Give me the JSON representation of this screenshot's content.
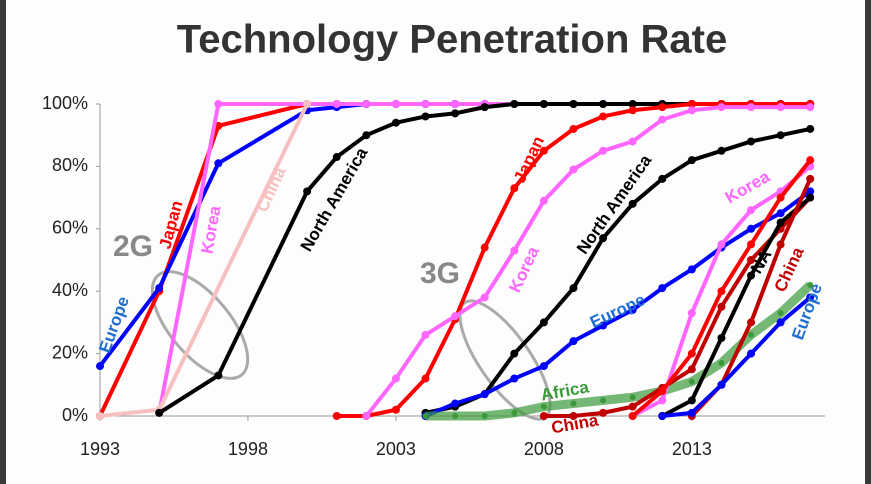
{
  "chart_data": {
    "type": "line",
    "title": "Technology Penetration Rate",
    "annotations": [
      "2G",
      "3G"
    ],
    "xlim": [
      1993,
      2017.5
    ],
    "xticks": [
      1993,
      1998,
      2003,
      2008,
      2013
    ],
    "ylim": [
      0,
      100
    ],
    "yticks": [
      {
        "value": 0,
        "label": "0%"
      },
      {
        "value": 20,
        "label": "20%"
      },
      {
        "value": 40,
        "label": "40%"
      },
      {
        "value": 60,
        "label": "60%"
      },
      {
        "value": 80,
        "label": "80%"
      },
      {
        "value": 100,
        "label": "100%"
      }
    ],
    "grid": false,
    "series": [
      {
        "name": "Japan",
        "color": "#ff0000",
        "x": [
          1993,
          1995,
          1997,
          2000,
          2001,
          2002
        ],
        "values": [
          0,
          40,
          93,
          100,
          100,
          100
        ]
      },
      {
        "name": "Europe",
        "color": "#0000ff",
        "x": [
          1993,
          1995,
          1997,
          2000,
          2001,
          2002,
          2003,
          2004,
          2005,
          2006,
          2007,
          2008,
          2009,
          2010,
          2011,
          2012,
          2013,
          2014,
          2015,
          2016,
          2017
        ],
        "values": [
          16,
          41,
          81,
          98,
          99,
          100,
          100,
          100,
          100,
          100,
          100,
          100,
          100,
          100,
          100,
          100,
          100,
          100,
          100,
          100,
          100
        ]
      },
      {
        "name": "Korea",
        "color": "#ff66ff",
        "x": [
          1995,
          1997,
          2000,
          2001,
          2002,
          2003,
          2004,
          2005,
          2006,
          2007,
          2008,
          2009,
          2010,
          2011,
          2012,
          2013,
          2014,
          2015,
          2016,
          2017
        ],
        "values": [
          1,
          100,
          100,
          100,
          100,
          100,
          100,
          100,
          100,
          100,
          100,
          100,
          100,
          100,
          100,
          100,
          100,
          100,
          100,
          100
        ]
      },
      {
        "name": "China",
        "color": "#f7c0c0",
        "x": [
          1993,
          1995,
          2000
        ],
        "values": [
          0,
          2,
          100
        ]
      },
      {
        "name": "North America",
        "color": "#000000",
        "x": [
          1995,
          1997,
          2000,
          2001,
          2002,
          2003,
          2004,
          2005,
          2006,
          2007,
          2008,
          2009,
          2010,
          2011,
          2012,
          2013,
          2014,
          2015,
          2016,
          2017
        ],
        "values": [
          1,
          13,
          72,
          83,
          90,
          94,
          96,
          97,
          99,
          100,
          100,
          100,
          100,
          100,
          100,
          100,
          100,
          100,
          100,
          100
        ]
      },
      {
        "name": "Japan",
        "color": "#ff0000",
        "x": [
          2001,
          2002,
          2003,
          2004,
          2005,
          2006,
          2007,
          2008,
          2009,
          2010,
          2011,
          2012,
          2013,
          2014,
          2015,
          2016,
          2017
        ],
        "values": [
          0,
          0,
          2,
          12,
          31,
          54,
          73,
          85,
          92,
          96,
          98,
          99,
          100,
          100,
          100,
          100,
          100
        ]
      },
      {
        "name": "Korea",
        "color": "#ff66ff",
        "x": [
          2002,
          2003,
          2004,
          2005,
          2006,
          2007,
          2008,
          2009,
          2010,
          2011,
          2012,
          2013,
          2014,
          2015,
          2016,
          2017
        ],
        "values": [
          0,
          12,
          26,
          32,
          38,
          53,
          69,
          79,
          85,
          88,
          95,
          98,
          99,
          99,
          99,
          99
        ]
      },
      {
        "name": "North America",
        "color": "#000000",
        "x": [
          2004,
          2005,
          2006,
          2007,
          2008,
          2009,
          2010,
          2011,
          2012,
          2013,
          2014,
          2015,
          2016,
          2017
        ],
        "values": [
          1,
          3,
          7,
          20,
          30,
          41,
          57,
          68,
          76,
          82,
          85,
          88,
          90,
          92
        ]
      },
      {
        "name": "Europe",
        "color": "#0000ff",
        "x": [
          2004,
          2005,
          2006,
          2007,
          2008,
          2009,
          2010,
          2011,
          2012,
          2013,
          2014,
          2015,
          2016,
          2017
        ],
        "values": [
          0,
          4,
          7,
          12,
          16,
          24,
          29,
          34,
          41,
          47,
          54,
          60,
          65,
          72
        ]
      },
      {
        "name": "Africa",
        "color": "#3a9a3a",
        "x": [
          2004,
          2005,
          2006,
          2007,
          2008,
          2009,
          2010,
          2011,
          2012,
          2013,
          2014,
          2015,
          2016,
          2017
        ],
        "values": [
          0,
          0,
          0,
          1,
          3,
          4,
          5,
          6,
          8,
          11,
          17,
          26,
          33,
          42
        ]
      },
      {
        "name": "China",
        "color": "#c00000",
        "x": [
          2008,
          2009,
          2010,
          2011,
          2012,
          2013,
          2014,
          2015,
          2016,
          2017
        ],
        "values": [
          0,
          0,
          1,
          3,
          9,
          15,
          35,
          50,
          60,
          70
        ]
      },
      {
        "name": "Korea",
        "color": "#ff66ff",
        "x": [
          2011,
          2012,
          2013,
          2014,
          2015,
          2016,
          2017
        ],
        "values": [
          0,
          5,
          33,
          55,
          66,
          72,
          80
        ]
      },
      {
        "color": "#ff0000",
        "x": [
          2011,
          2012,
          2013,
          2014,
          2015,
          2016,
          2017
        ],
        "values": [
          0,
          8,
          20,
          40,
          55,
          70,
          82
        ]
      },
      {
        "name": "NA",
        "color": "#000000",
        "x": [
          2012,
          2013,
          2014,
          2015,
          2016,
          2017
        ],
        "values": [
          0,
          5,
          25,
          45,
          62,
          70
        ]
      },
      {
        "name": "China",
        "color": "#c00000",
        "x": [
          2013,
          2014,
          2015,
          2016,
          2017
        ],
        "values": [
          0,
          10,
          30,
          55,
          76
        ]
      },
      {
        "name": "Europe",
        "color": "#0000ff",
        "x": [
          2012,
          2013,
          2014,
          2015,
          2016,
          2017
        ],
        "values": [
          0,
          1,
          10,
          20,
          30,
          38
        ]
      }
    ]
  }
}
